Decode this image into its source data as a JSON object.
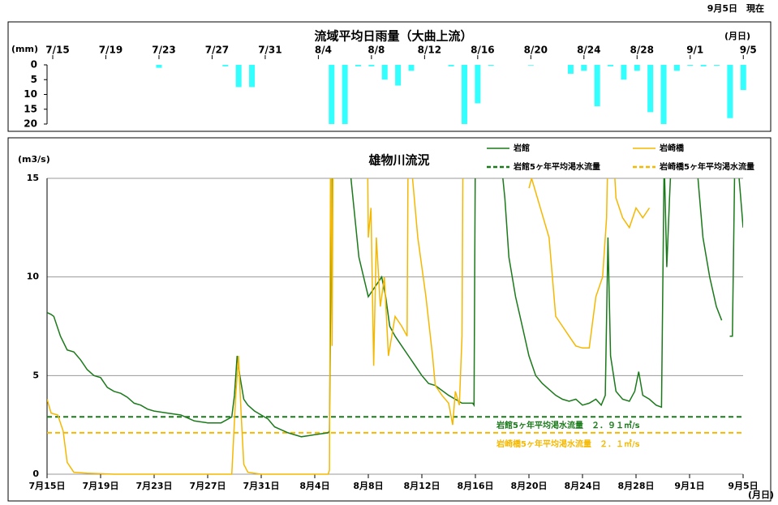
{
  "header": "9月5日　現在",
  "chart_data": [
    {
      "type": "bar",
      "title": "流域平均日雨量（大曲上流）",
      "y_label": "(mm)",
      "x_unit": "(月日)",
      "categories": [
        "7/15",
        null,
        null,
        null,
        "7/19",
        null,
        null,
        null,
        "7/23",
        null,
        null,
        null,
        "7/27",
        null,
        null,
        null,
        "7/31",
        null,
        null,
        null,
        "8/4",
        null,
        null,
        null,
        "8/8",
        null,
        null,
        null,
        "8/12",
        null,
        null,
        null,
        "8/16",
        null,
        null,
        null,
        "8/20",
        null,
        null,
        null,
        "8/24",
        null,
        null,
        null,
        "8/28",
        null,
        null,
        null,
        "9/1",
        null,
        null,
        null,
        "9/5"
      ],
      "values": [
        0,
        0,
        0,
        0,
        0,
        0,
        0,
        0,
        1,
        0,
        0,
        0,
        0,
        0.5,
        7.5,
        7.5,
        0,
        0,
        0,
        0,
        0,
        20,
        20,
        0.5,
        0.5,
        5,
        7,
        2,
        0,
        0,
        0.5,
        20,
        13,
        0.3,
        0,
        0,
        0.2,
        0,
        0,
        3,
        2,
        14,
        0.5,
        5,
        2,
        16,
        20,
        2,
        0.3,
        0.5,
        0.3,
        18,
        8.5
      ],
      "color": "#33ffff",
      "ylim": [
        0,
        20
      ],
      "yticks": [
        0,
        5,
        10,
        15,
        20
      ],
      "inverted": true
    },
    {
      "type": "line",
      "title": "雄物川流況",
      "y_label": "(m3/s)",
      "x_unit": "(月日)",
      "xlim": [
        0,
        52
      ],
      "xticks": [
        {
          "value": 0,
          "label": "7月15日"
        },
        {
          "value": 4,
          "label": "7月19日"
        },
        {
          "value": 8,
          "label": "7月23日"
        },
        {
          "value": 12,
          "label": "7月27日"
        },
        {
          "value": 16,
          "label": "7月31日"
        },
        {
          "value": 20,
          "label": "8月4日"
        },
        {
          "value": 24,
          "label": "8月8日"
        },
        {
          "value": 28,
          "label": "8月12日"
        },
        {
          "value": 32,
          "label": "8月16日"
        },
        {
          "value": 36,
          "label": "8月20日"
        },
        {
          "value": 40,
          "label": "8月24日"
        },
        {
          "value": 44,
          "label": "8月28日"
        },
        {
          "value": 48,
          "label": "9月1日"
        },
        {
          "value": 52,
          "label": "9月5日"
        }
      ],
      "ylim": [
        0,
        15
      ],
      "yticks": [
        0,
        5,
        10,
        15
      ],
      "grid": true,
      "legend": "upper right",
      "series": [
        {
          "name": "岩館",
          "color": "#1a7a1a",
          "x": [
            0,
            0.3,
            0.5,
            1,
            1.5,
            2,
            2.5,
            3,
            3.5,
            4,
            4.5,
            5,
            5.5,
            6,
            6.5,
            7,
            7.5,
            8,
            9,
            10,
            11,
            12,
            13,
            13.8,
            14,
            14.2,
            14.4,
            14.7,
            15,
            15.5,
            16,
            16.5,
            17,
            18,
            19,
            20,
            21,
            21.1,
            21.3,
            22.7,
            23.3,
            24,
            24.5,
            25,
            25.3,
            25.6,
            26,
            26.5,
            27,
            27.5,
            28,
            28.5,
            29,
            30,
            31,
            31.8,
            31.9,
            32,
            33.9,
            34.2,
            34.5,
            35,
            35.5,
            36,
            36.5,
            37,
            37.5,
            38,
            38.5,
            39,
            39.5,
            40,
            40.5,
            41,
            41.4,
            41.7,
            41.9,
            42.1,
            42.5,
            43,
            43.5,
            43.9,
            44.2,
            44.5,
            45,
            45.5,
            45.9,
            46.1,
            46.3,
            46.5,
            46.7,
            48.5,
            49,
            49.5,
            50,
            50.4,
            50.7,
            51,
            51.2,
            51.4,
            51.7,
            52
          ],
          "values": [
            8.2,
            8.1,
            8.0,
            7.0,
            6.3,
            6.2,
            5.8,
            5.3,
            5.0,
            4.9,
            4.4,
            4.2,
            4.1,
            3.9,
            3.6,
            3.5,
            3.3,
            3.2,
            3.1,
            3.0,
            2.7,
            2.6,
            2.6,
            2.9,
            4.0,
            6.0,
            5.0,
            3.8,
            3.5,
            3.2,
            3.0,
            2.8,
            2.4,
            2.1,
            1.9,
            2.0,
            2.1,
            2.2,
            17,
            15,
            11,
            9,
            9.5,
            10,
            9,
            7.5,
            7,
            6.5,
            6,
            5.5,
            5,
            4.6,
            4.5,
            4,
            3.6,
            3.6,
            3.5,
            17,
            16,
            14,
            11,
            9,
            7.5,
            6,
            5,
            4.6,
            4.3,
            4,
            3.8,
            3.7,
            3.8,
            3.5,
            3.6,
            3.8,
            3.5,
            4,
            12,
            6,
            4.2,
            3.8,
            3.7,
            4.2,
            5.2,
            4,
            3.8,
            3.5,
            3.4,
            16,
            10.5,
            14,
            17,
            16,
            12,
            10,
            8.5,
            7.8,
            null,
            7,
            7,
            17,
            15,
            12.5
          ]
        },
        {
          "name": "岩崎橋",
          "color": "#f5b800",
          "x": [
            0,
            0.3,
            0.8,
            1.2,
            1.5,
            2,
            3,
            5,
            8,
            13.8,
            14.1,
            14.3,
            14.5,
            14.7,
            15,
            16,
            21,
            21.1,
            21.2,
            21.3,
            21.4,
            23.9,
            24,
            24.2,
            24.4,
            24.6,
            24.9,
            25.2,
            25.5,
            26,
            26.5,
            26.9,
            27,
            27.3,
            27.7,
            28.3,
            28.8,
            29,
            29.5,
            30,
            30.3,
            30.5,
            30.8,
            31,
            31.1,
            31.4,
            36,
            36.2,
            37.5,
            38,
            38.5,
            39,
            39.5,
            40,
            40.5,
            41,
            41.5,
            41.8,
            42,
            42.5,
            43,
            43.5,
            44,
            44.5,
            45
          ],
          "values": [
            3.8,
            3.1,
            3.0,
            2.2,
            0.6,
            0.1,
            0.05,
            0,
            0,
            0,
            4,
            6,
            3,
            0.5,
            0.1,
            0,
            0,
            0.2,
            20,
            6.5,
            20,
            20,
            12,
            13.5,
            5.5,
            12,
            8.5,
            10,
            6,
            8,
            7.5,
            7,
            20,
            15,
            12,
            9,
            6,
            4.5,
            4,
            3.6,
            2.5,
            4.2,
            3.5,
            7,
            20,
            null,
            14.5,
            15,
            12,
            8,
            7.5,
            7,
            6.5,
            6.4,
            6.4,
            9,
            10,
            13,
            20,
            14,
            13,
            12.5,
            13.5,
            13,
            13.5
          ]
        }
      ],
      "hlines": [
        {
          "name": "岩館5ヶ年平均渇水流量",
          "value": 2.91,
          "color": "#1a7a1a",
          "label": "岩館5ヶ年平均渇水流量　２．９１㎥/s"
        },
        {
          "name": "岩崎橋5ヶ年平均渇水流量",
          "value": 2.1,
          "color": "#f5b800",
          "label": "岩崎橋5ヶ年平均渇水流量　２．１㎥/s"
        }
      ]
    }
  ]
}
